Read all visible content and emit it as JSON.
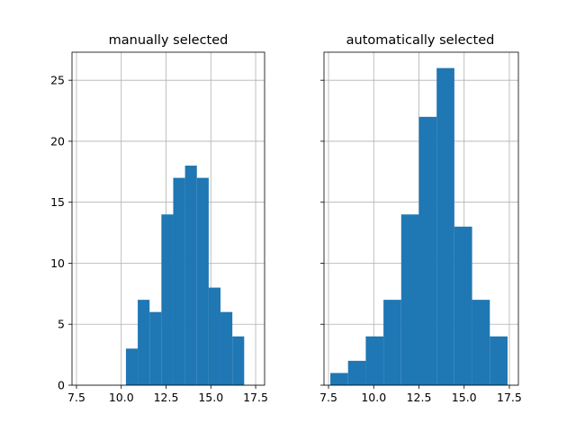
{
  "chart_data": [
    {
      "type": "bar",
      "title": "manually selected",
      "xlabel": "",
      "ylabel": "",
      "xlim": [
        7.25,
        18.0
      ],
      "ylim": [
        0,
        27.3
      ],
      "grid": true,
      "bar_color": "#1f77b4",
      "xticks": [
        7.5,
        10.0,
        12.5,
        15.0,
        17.5
      ],
      "xtick_labels": [
        "7.5",
        "10.0",
        "12.5",
        "15.0",
        "17.5"
      ],
      "yticks": [
        0,
        5,
        10,
        15,
        20,
        25
      ],
      "ytick_labels": [
        "0",
        "5",
        "10",
        "15",
        "20",
        "25"
      ],
      "bin_width": 0.66,
      "bins": [
        {
          "x": 10.26,
          "count": 3
        },
        {
          "x": 10.92,
          "count": 7
        },
        {
          "x": 11.58,
          "count": 6
        },
        {
          "x": 12.24,
          "count": 14
        },
        {
          "x": 12.9,
          "count": 17
        },
        {
          "x": 13.56,
          "count": 18
        },
        {
          "x": 14.22,
          "count": 17
        },
        {
          "x": 14.88,
          "count": 8
        },
        {
          "x": 15.54,
          "count": 6
        },
        {
          "x": 16.2,
          "count": 4
        }
      ]
    },
    {
      "type": "bar",
      "title": "automatically selected",
      "xlabel": "",
      "ylabel": "",
      "xlim": [
        7.25,
        18.0
      ],
      "ylim": [
        0,
        27.3
      ],
      "grid": true,
      "bar_color": "#1f77b4",
      "shared_y": true,
      "xticks": [
        7.5,
        10.0,
        12.5,
        15.0,
        17.5
      ],
      "xtick_labels": [
        "7.5",
        "10.0",
        "12.5",
        "15.0",
        "17.5"
      ],
      "yticks": [
        0,
        5,
        10,
        15,
        20,
        25
      ],
      "ytick_labels": [],
      "bin_width": 0.98,
      "bins": [
        {
          "x": 7.6,
          "count": 1
        },
        {
          "x": 8.58,
          "count": 2
        },
        {
          "x": 9.56,
          "count": 4
        },
        {
          "x": 10.54,
          "count": 7
        },
        {
          "x": 11.52,
          "count": 14
        },
        {
          "x": 12.5,
          "count": 22
        },
        {
          "x": 13.48,
          "count": 26
        },
        {
          "x": 14.46,
          "count": 13
        },
        {
          "x": 15.44,
          "count": 7
        },
        {
          "x": 16.42,
          "count": 4
        }
      ]
    }
  ]
}
